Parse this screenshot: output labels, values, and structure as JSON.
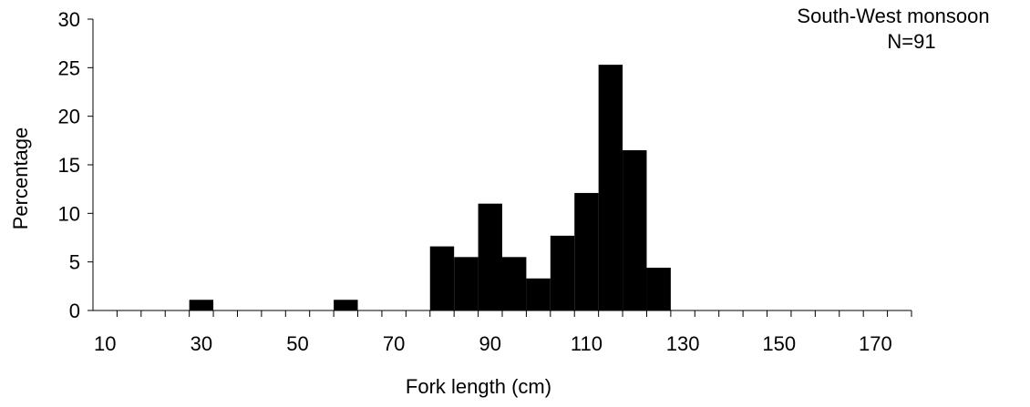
{
  "chart_data": {
    "type": "bar",
    "xlabel": "Fork length (cm)",
    "ylabel": "Percentage",
    "ylim": [
      0,
      30
    ],
    "yticks": [
      0,
      5,
      10,
      15,
      20,
      25,
      30
    ],
    "xticks": [
      "10",
      "30",
      "50",
      "70",
      "90",
      "110",
      "130",
      "150",
      "170"
    ],
    "bin_width": 5,
    "categories": [
      10,
      15,
      20,
      25,
      30,
      35,
      40,
      45,
      50,
      55,
      60,
      65,
      70,
      75,
      80,
      85,
      90,
      95,
      100,
      105,
      110,
      115,
      120,
      125,
      130,
      135,
      140,
      145,
      150,
      155,
      160,
      165,
      170,
      175
    ],
    "values": [
      0,
      0,
      0,
      0,
      1.1,
      0,
      0,
      0,
      0,
      0,
      1.1,
      0,
      0,
      0,
      6.6,
      5.5,
      11.0,
      5.5,
      3.3,
      7.7,
      12.1,
      25.3,
      16.5,
      4.4,
      0,
      0,
      0,
      0,
      0,
      0,
      0,
      0,
      0,
      0
    ],
    "bar_color": "#000000",
    "grid": false,
    "legend": "none"
  },
  "annotation": {
    "line1": "South-West monsoon",
    "line2": "N=91"
  }
}
